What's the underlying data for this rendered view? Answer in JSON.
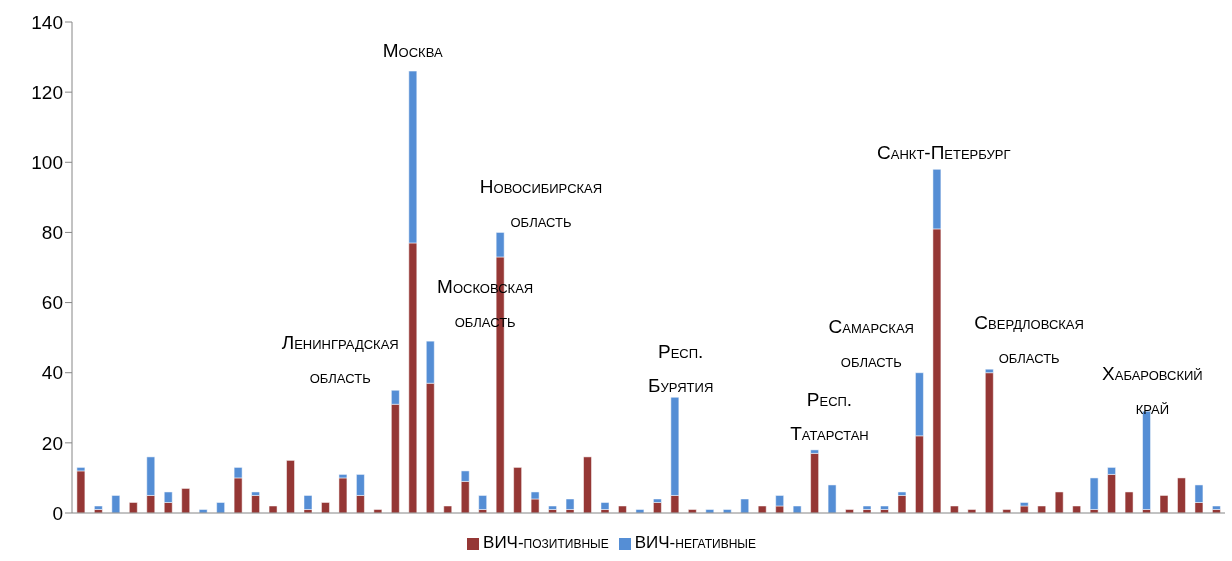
{
  "chart_data": {
    "type": "bar",
    "stacked": true,
    "categories": [
      null,
      null,
      null,
      null,
      null,
      null,
      null,
      null,
      null,
      null,
      null,
      null,
      null,
      null,
      null,
      null,
      null,
      null,
      null,
      null,
      null,
      null,
      null,
      null,
      null,
      null,
      null,
      null,
      null,
      null,
      null,
      null,
      null,
      null,
      null,
      null,
      null,
      null,
      null,
      null,
      null,
      null,
      null,
      null,
      null,
      null,
      null,
      null,
      null,
      null,
      null,
      null,
      null,
      null,
      null,
      null,
      null,
      null,
      null,
      null,
      null,
      null,
      null,
      null,
      null,
      null
    ],
    "series": [
      {
        "name": "ВИЧ-позитивные",
        "color": "#953735",
        "values": [
          12,
          1,
          0,
          3,
          5,
          3,
          7,
          0,
          0,
          10,
          5,
          2,
          15,
          1,
          3,
          10,
          5,
          1,
          31,
          77,
          37,
          2,
          9,
          1,
          73,
          13,
          4,
          1,
          1,
          16,
          1,
          2,
          0,
          3,
          5,
          1,
          0,
          0,
          0,
          2,
          2,
          0,
          17,
          0,
          1,
          1,
          1,
          5,
          22,
          81,
          2,
          1,
          40,
          1,
          2,
          2,
          6,
          2,
          1,
          11,
          6,
          1,
          5,
          10,
          3,
          1
        ]
      },
      {
        "name": "ВИЧ-негативные",
        "color": "#558ed5",
        "values": [
          1,
          1,
          5,
          0,
          11,
          3,
          0,
          1,
          3,
          3,
          1,
          0,
          0,
          4,
          0,
          1,
          6,
          0,
          4,
          49,
          12,
          0,
          3,
          4,
          7,
          0,
          2,
          1,
          3,
          0,
          2,
          0,
          1,
          1,
          28,
          0,
          1,
          1,
          4,
          0,
          3,
          2,
          1,
          8,
          0,
          1,
          1,
          1,
          18,
          17,
          0,
          0,
          1,
          0,
          1,
          0,
          0,
          0,
          9,
          2,
          0,
          28,
          0,
          0,
          5,
          1
        ]
      }
    ],
    "ylim": [
      0,
      140
    ],
    "yticks": [
      0,
      20,
      40,
      60,
      80,
      100,
      120,
      140
    ],
    "grid": false,
    "legend": "bottom",
    "tick_labels": "y",
    "annotations": [
      "Ленинградская область",
      "Москва",
      "Московская область",
      "Новосибирская область",
      "Респ. Бурятия",
      "Респ. Татарстан",
      "Самарская область",
      "Санкт-Петербург",
      "Свердловская область",
      "Хабаровский край"
    ]
  }
}
